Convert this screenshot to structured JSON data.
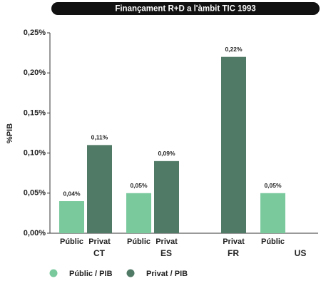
{
  "chart_data": {
    "type": "bar",
    "title": "Finançament R+D a l'àmbit TIC 1993",
    "y_label": "%PIB",
    "categories": [
      "CT",
      "ES",
      "FR",
      "US"
    ],
    "bar_labels": [
      "Públic",
      "Privat"
    ],
    "series": [
      {
        "name": "Públic / PIB",
        "color": "#79c99d",
        "values": [
          0.04,
          0.05,
          null,
          0.05
        ],
        "value_labels": [
          "0,04%",
          "0,05%",
          null,
          "0,05%"
        ]
      },
      {
        "name": "Privat / PIB",
        "color": "#507a65",
        "values": [
          0.11,
          0.09,
          0.22,
          null
        ],
        "value_labels": [
          "0,11%",
          "0,09%",
          "0,22%",
          null
        ]
      }
    ],
    "ylim": [
      0,
      0.25
    ],
    "yticks": [
      {
        "value": 0,
        "label": "0,00%"
      },
      {
        "value": 0.05,
        "label": "0,05%"
      },
      {
        "value": 0.1,
        "label": "0,10%"
      },
      {
        "value": 0.15,
        "label": "0,15%"
      },
      {
        "value": 0.2,
        "label": "0,20%"
      },
      {
        "value": 0.25,
        "label": "0,25%"
      }
    ],
    "grid": false
  }
}
